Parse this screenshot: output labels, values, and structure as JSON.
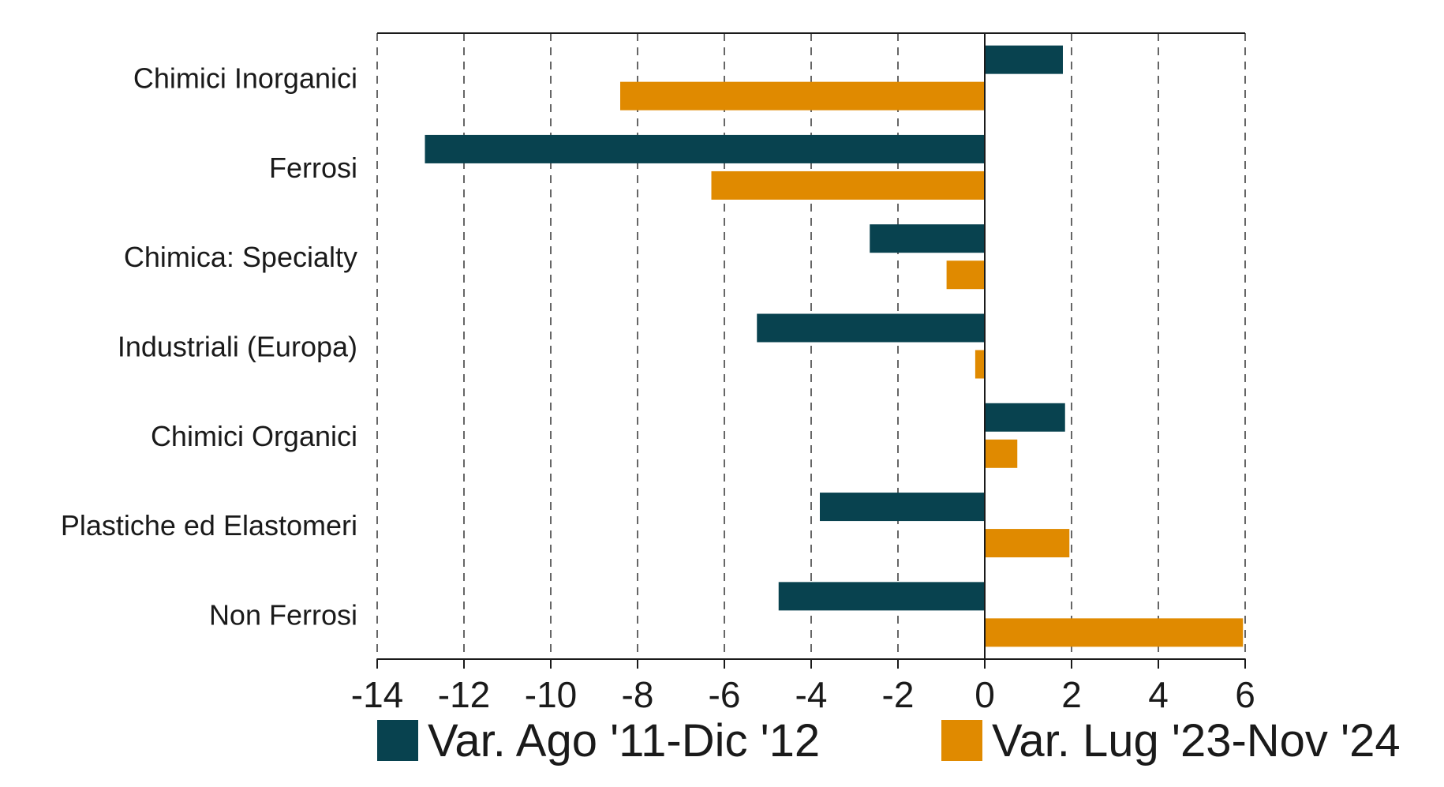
{
  "chart_data": {
    "type": "bar",
    "orientation": "horizontal",
    "categories": [
      "Chimici Inorganici",
      "Ferrosi",
      "Chimica: Specialty",
      "Industriali (Europa)",
      "Chimici Organici",
      "Plastiche ed Elastomeri",
      "Non Ferrosi"
    ],
    "series": [
      {
        "name": "Var. Ago '11-Dic '12",
        "color": "#08424f",
        "values": [
          1.8,
          -12.9,
          -2.65,
          -5.25,
          1.85,
          -3.8,
          -4.75
        ]
      },
      {
        "name": "Var. Lug '23-Nov '24",
        "color": "#e08a00",
        "values": [
          -8.4,
          -6.3,
          -0.88,
          -0.22,
          0.75,
          1.95,
          5.95
        ]
      }
    ],
    "xlim": [
      -14,
      6
    ],
    "xticks": [
      "-14",
      "-12",
      "-10",
      "-8",
      "-6",
      "-4",
      "-2",
      "0",
      "2",
      "4",
      "6"
    ],
    "grid": "vertical dashed",
    "legend_position": "bottom"
  }
}
